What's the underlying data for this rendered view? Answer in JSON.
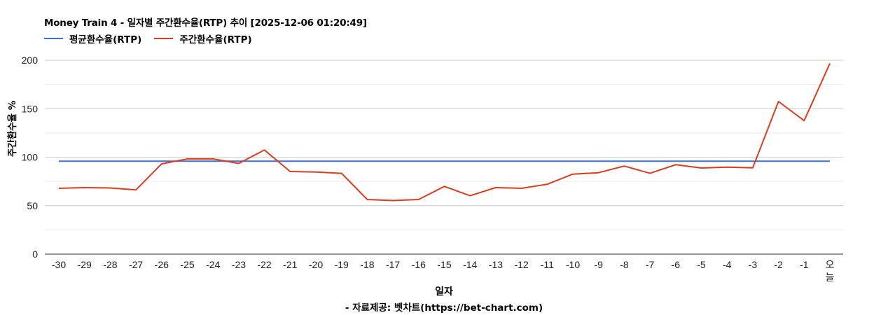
{
  "header": {
    "title": "Money Train 4 - 일자별 주간환수율(RTP) 추이 [2025-12-06 01:20:49]"
  },
  "legend": [
    {
      "label": "평균환수율(RTP)",
      "color": "#3c6fd8"
    },
    {
      "label": "주간환수율(RTP)",
      "color": "#db3c1e"
    }
  ],
  "axes": {
    "ylabel": "주간환수율 %",
    "xlabel": "일자",
    "source": "- 자료제공: 벳차트(https://bet-chart.com)"
  },
  "chart_data": {
    "type": "line",
    "title": "Money Train 4 - 일자별 주간환수율(RTP) 추이 [2025-12-06 01:20:49]",
    "xlabel": "일자",
    "ylabel": "주간환수율 %",
    "ylim": [
      0,
      200
    ],
    "yticks": [
      0,
      50,
      100,
      150,
      200
    ],
    "grid": true,
    "legend_position": "top-left",
    "categories": [
      "-30",
      "-29",
      "-28",
      "-27",
      "-26",
      "-25",
      "-24",
      "-23",
      "-22",
      "-21",
      "-20",
      "-19",
      "-18",
      "-17",
      "-16",
      "-15",
      "-14",
      "-13",
      "-12",
      "-11",
      "-10",
      "-9",
      "-8",
      "-7",
      "-6",
      "-5",
      "-4",
      "-3",
      "-2",
      "-1",
      "오늘"
    ],
    "series": [
      {
        "name": "평균환수율(RTP)",
        "color": "#3c6fd8",
        "values": [
          95.8,
          95.8,
          95.8,
          95.8,
          95.8,
          95.8,
          95.8,
          95.8,
          95.8,
          95.8,
          95.8,
          95.8,
          95.8,
          95.8,
          95.8,
          95.8,
          95.8,
          95.8,
          95.8,
          95.8,
          95.8,
          95.8,
          95.8,
          95.8,
          95.8,
          95.8,
          95.8,
          95.8,
          95.8,
          95.8,
          95.8
        ]
      },
      {
        "name": "주간환수율(RTP)",
        "color": "#db3c1e",
        "values": [
          67.9,
          68.6,
          68.2,
          66.2,
          93.1,
          98.2,
          98.2,
          93.5,
          107.4,
          85.2,
          84.7,
          83.3,
          56.3,
          55.2,
          56.3,
          69.8,
          60.2,
          68.6,
          67.9,
          72.0,
          82.5,
          84.0,
          90.8,
          83.3,
          92.2,
          88.8,
          89.7,
          89.0,
          157.4,
          137.7,
          196.6
        ]
      }
    ],
    "source": "- 자료제공: 벳차트(https://bet-chart.com)"
  }
}
